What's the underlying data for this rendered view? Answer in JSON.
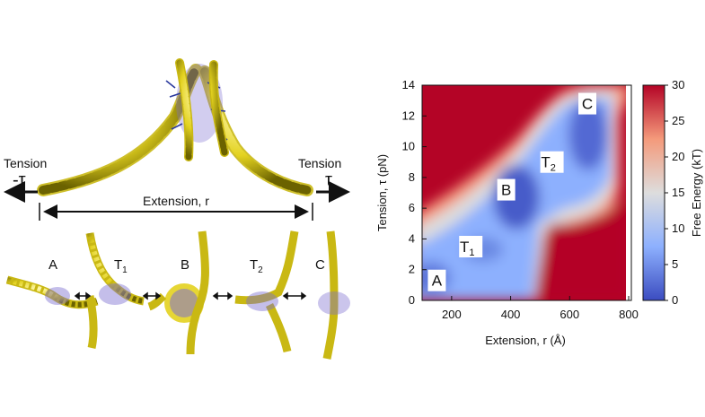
{
  "illustration": {
    "left_tension_word": "Tension",
    "left_tension_symbol": "-τ",
    "right_tension_word": "Tension",
    "right_tension_symbol": "τ",
    "extension_label": "Extension, r",
    "states": [
      {
        "label": "A"
      },
      {
        "label": "T",
        "sub": "1"
      },
      {
        "label": "B"
      },
      {
        "label": "T",
        "sub": "2"
      },
      {
        "label": "C"
      }
    ],
    "colors": {
      "dna_helix": "#e3d21f",
      "histone_core": "#6a5acd",
      "tails": "#2b3a9e"
    }
  },
  "chart_data": {
    "type": "heatmap",
    "xlabel": "Extension, r (Å)",
    "ylabel": "Tension, τ (pN)",
    "colorbar_label": "Free Energy (kT)",
    "xlim": [
      100,
      800
    ],
    "ylim": [
      0,
      14
    ],
    "x_ticks": [
      200,
      400,
      600,
      800
    ],
    "y_ticks": [
      0,
      2,
      4,
      6,
      8,
      10,
      12,
      14
    ],
    "colorbar_range": [
      0,
      30
    ],
    "colorbar_ticks": [
      0,
      5,
      10,
      15,
      20,
      25,
      30
    ],
    "colormap": [
      "#3b4cc0",
      "#8db0fe",
      "#dddddd",
      "#f49a7b",
      "#b40426"
    ],
    "state_labels": [
      {
        "label": "A",
        "x": 150,
        "y": 1.3
      },
      {
        "label": "T",
        "sub": "1",
        "x": 265,
        "y": 3.5
      },
      {
        "label": "B",
        "x": 385,
        "y": 7.2
      },
      {
        "label": "T",
        "sub": "2",
        "x": 540,
        "y": 9.0
      },
      {
        "label": "C",
        "x": 660,
        "y": 12.8
      }
    ]
  }
}
